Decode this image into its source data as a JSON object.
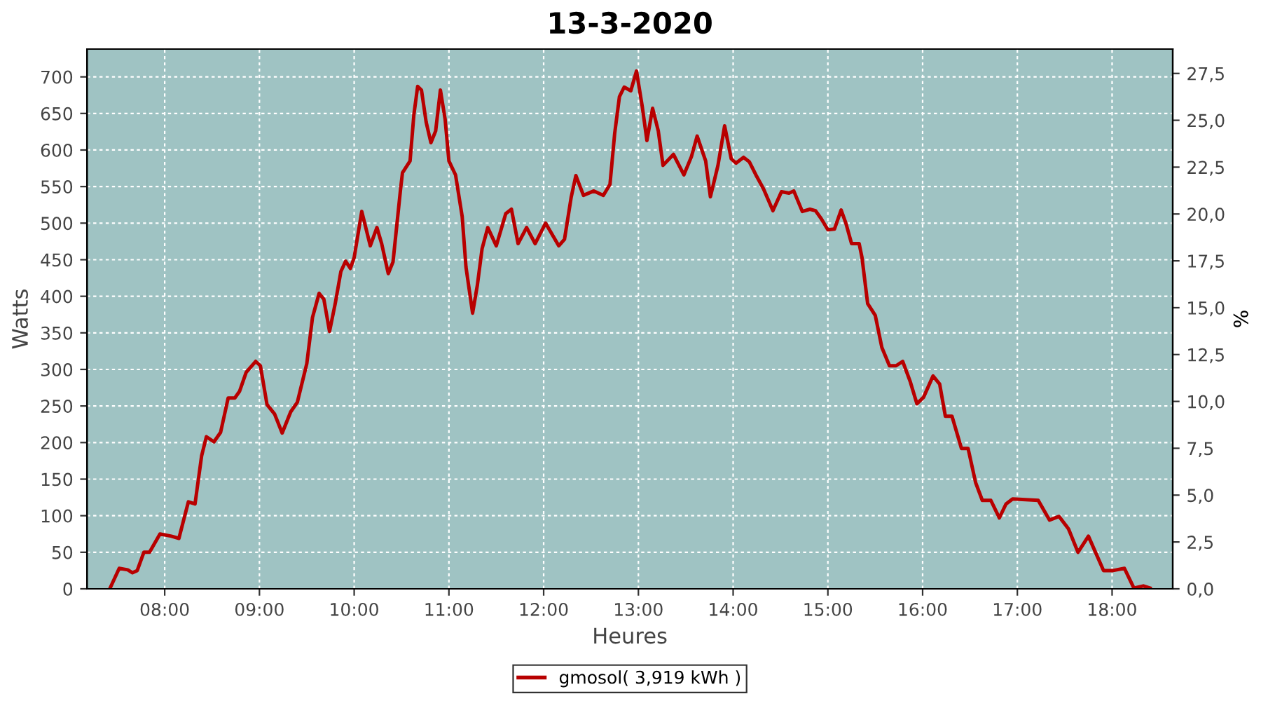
{
  "chart_data": {
    "type": "line",
    "title": "13-3-2020",
    "xlabel": "Heures",
    "ylabel": "Watts",
    "y2label": "%",
    "xlim": [
      7.18,
      18.64
    ],
    "xticks": [
      {
        "value": 8,
        "label": "08:00"
      },
      {
        "value": 9,
        "label": "09:00"
      },
      {
        "value": 10,
        "label": "10:00"
      },
      {
        "value": 11,
        "label": "11:00"
      },
      {
        "value": 12,
        "label": "12:00"
      },
      {
        "value": 13,
        "label": "13:00"
      },
      {
        "value": 14,
        "label": "14:00"
      },
      {
        "value": 15,
        "label": "15:00"
      },
      {
        "value": 16,
        "label": "16:00"
      },
      {
        "value": 17,
        "label": "17:00"
      },
      {
        "value": 18,
        "label": "18:00"
      }
    ],
    "ylim": [
      0,
      738
    ],
    "yticks": [
      0,
      50,
      100,
      150,
      200,
      250,
      300,
      350,
      400,
      450,
      500,
      550,
      600,
      650,
      700
    ],
    "y2lim": [
      0,
      28.8
    ],
    "y2ticks": [
      {
        "value": 0,
        "label": "0,0"
      },
      {
        "value": 2.5,
        "label": "2,5"
      },
      {
        "value": 5,
        "label": "5,0"
      },
      {
        "value": 7.5,
        "label": "7,5"
      },
      {
        "value": 10,
        "label": "10,0"
      },
      {
        "value": 12.5,
        "label": "12,5"
      },
      {
        "value": 15,
        "label": "15,0"
      },
      {
        "value": 17.5,
        "label": "17,5"
      },
      {
        "value": 20,
        "label": "20,0"
      },
      {
        "value": 22.5,
        "label": "22,5"
      },
      {
        "value": 25,
        "label": "25,0"
      },
      {
        "value": 27.5,
        "label": "27,5"
      }
    ],
    "grid": true,
    "legend": "bottom",
    "marker": "none",
    "line_style": "solid",
    "series": [
      {
        "name": "gmosol( 3,919 kWh )",
        "color": "#b80000",
        "x": [
          7.42,
          7.52,
          7.61,
          7.66,
          7.71,
          7.78,
          7.84,
          7.95,
          8.07,
          8.15,
          8.25,
          8.32,
          8.39,
          8.44,
          8.52,
          8.59,
          8.67,
          8.74,
          8.79,
          8.86,
          8.96,
          9.01,
          9.08,
          9.16,
          9.24,
          9.33,
          9.4,
          9.5,
          9.56,
          9.63,
          9.68,
          9.74,
          9.8,
          9.86,
          9.91,
          9.96,
          10.0,
          10.08,
          10.17,
          10.24,
          10.29,
          10.36,
          10.41,
          10.49,
          10.51,
          10.59,
          10.63,
          10.67,
          10.71,
          10.76,
          10.81,
          10.86,
          10.91,
          10.96,
          11.0,
          11.07,
          11.14,
          11.18,
          11.25,
          11.3,
          11.35,
          11.41,
          11.5,
          11.6,
          11.66,
          11.73,
          11.82,
          11.91,
          12.02,
          12.16,
          12.22,
          12.29,
          12.34,
          12.42,
          12.53,
          12.63,
          12.7,
          12.75,
          12.8,
          12.85,
          12.92,
          12.98,
          13.04,
          13.09,
          13.15,
          13.21,
          13.26,
          13.37,
          13.48,
          13.56,
          13.62,
          13.71,
          13.76,
          13.84,
          13.91,
          13.98,
          14.03,
          14.11,
          14.17,
          14.24,
          14.32,
          14.42,
          14.51,
          14.59,
          14.64,
          14.73,
          14.81,
          14.87,
          14.93,
          15.0,
          15.07,
          15.14,
          15.19,
          15.25,
          15.33,
          15.36,
          15.42,
          15.5,
          15.57,
          15.65,
          15.72,
          15.79,
          15.87,
          15.94,
          16.01,
          16.11,
          16.18,
          16.24,
          16.31,
          16.41,
          16.48,
          16.56,
          16.63,
          16.72,
          16.81,
          16.88,
          16.95,
          17.22,
          17.34,
          17.44,
          17.54,
          17.64,
          17.75,
          17.91,
          18.01,
          18.13,
          18.23,
          18.33,
          18.4
        ],
        "values": [
          0,
          28,
          26,
          22,
          25,
          50,
          50,
          75,
          72,
          69,
          119,
          116,
          182,
          208,
          201,
          214,
          261,
          261,
          270,
          296,
          311,
          305,
          252,
          239,
          213,
          242,
          255,
          308,
          371,
          404,
          396,
          352,
          390,
          434,
          448,
          438,
          453,
          516,
          469,
          494,
          472,
          431,
          447,
          547,
          569,
          585,
          648,
          687,
          682,
          638,
          610,
          626,
          682,
          642,
          585,
          566,
          509,
          440,
          377,
          415,
          465,
          494,
          469,
          513,
          519,
          472,
          494,
          472,
          500,
          469,
          478,
          535,
          565,
          538,
          544,
          538,
          553,
          623,
          673,
          686,
          681,
          708,
          660,
          613,
          657,
          626,
          579,
          594,
          566,
          591,
          619,
          585,
          536,
          579,
          633,
          588,
          582,
          590,
          584,
          566,
          547,
          517,
          543,
          541,
          544,
          516,
          519,
          517,
          506,
          491,
          492,
          518,
          500,
          472,
          472,
          453,
          390,
          374,
          330,
          305,
          305,
          311,
          283,
          253,
          262,
          291,
          280,
          236,
          236,
          192,
          192,
          145,
          121,
          121,
          97,
          116,
          123,
          121,
          94,
          99,
          82,
          50,
          72,
          25,
          25,
          28,
          1,
          4,
          1
        ]
      }
    ]
  }
}
